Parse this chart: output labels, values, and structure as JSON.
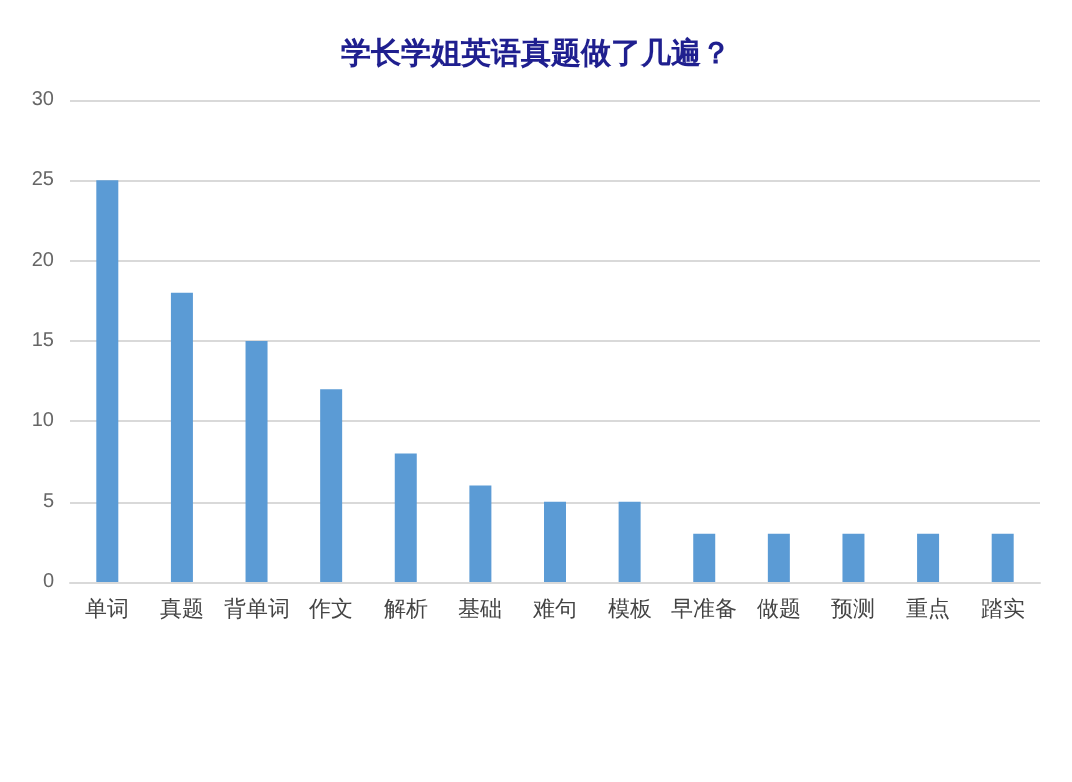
{
  "chart_data": {
    "type": "bar",
    "title": "学长学姐英语真题做了几遍？",
    "categories": [
      "单词",
      "真题",
      "背单词",
      "作文",
      "解析",
      "基础",
      "难句",
      "模板",
      "早准备",
      "做题",
      "预测",
      "重点",
      "踏实"
    ],
    "values": [
      25,
      18,
      15,
      12,
      8,
      6,
      5,
      5,
      3,
      3,
      3,
      3,
      3
    ],
    "color": "#5b9bd5",
    "ylim": [
      0,
      30
    ],
    "yticks": [
      0,
      5,
      10,
      15,
      20,
      25,
      30
    ],
    "grid": "y"
  }
}
